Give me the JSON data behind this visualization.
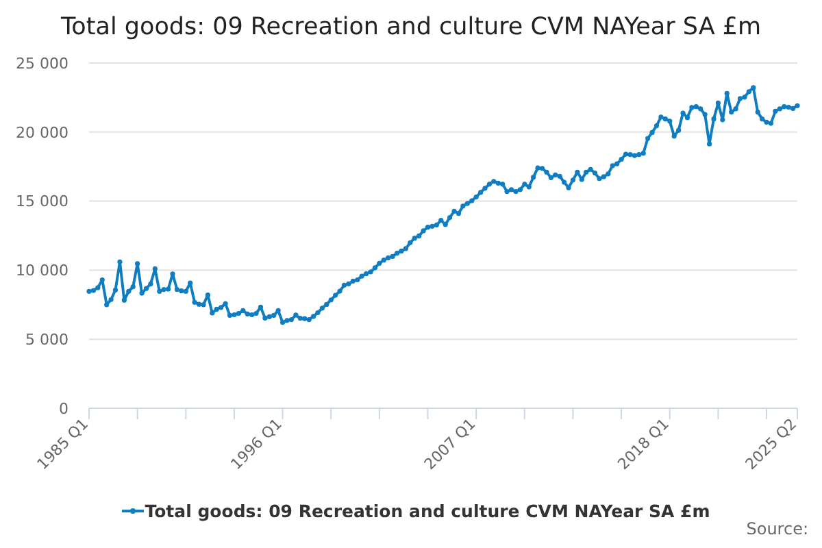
{
  "chart_data": {
    "type": "line",
    "title": "Total goods: 09 Recreation and culture CVM NAYear SA £m",
    "categories": [
      "1985 Q1",
      null,
      null,
      null,
      null,
      null,
      null,
      null,
      null,
      null,
      null,
      null,
      null,
      null,
      null,
      null,
      null,
      null,
      null,
      null,
      null,
      null,
      null,
      null,
      null,
      null,
      null,
      null,
      null,
      null,
      null,
      null,
      null,
      null,
      null,
      null,
      null,
      null,
      null,
      null,
      null,
      null,
      null,
      null,
      "1996 Q1",
      null,
      null,
      null,
      null,
      null,
      null,
      null,
      null,
      null,
      null,
      null,
      null,
      null,
      null,
      null,
      null,
      null,
      null,
      null,
      null,
      null,
      null,
      null,
      null,
      null,
      null,
      null,
      null,
      null,
      null,
      null,
      null,
      null,
      null,
      null,
      null,
      null,
      null,
      null,
      null,
      null,
      null,
      null,
      "2007 Q1",
      null,
      null,
      null,
      null,
      null,
      null,
      null,
      null,
      null,
      null,
      null,
      null,
      null,
      null,
      null,
      null,
      null,
      null,
      null,
      null,
      null,
      null,
      null,
      null,
      null,
      null,
      null,
      null,
      null,
      null,
      null,
      null,
      null,
      null,
      null,
      null,
      null,
      null,
      null,
      null,
      null,
      null,
      null,
      "2018 Q1",
      null,
      null,
      null,
      null,
      null,
      null,
      null,
      null,
      null,
      null,
      null,
      null,
      null,
      null,
      null,
      null,
      null,
      null,
      null,
      null,
      null,
      null,
      null,
      null,
      null,
      null,
      null,
      null,
      "2025 Q2"
    ],
    "series": [
      {
        "name": "Total goods: 09 Recreation and culture CVM NAYear SA £m",
        "color": "#0f7dc2",
        "values": [
          8470,
          8530,
          8730,
          9300,
          7500,
          7870,
          8570,
          10600,
          7830,
          8470,
          8800,
          10470,
          8330,
          8670,
          9000,
          10100,
          8470,
          8600,
          8630,
          9730,
          8600,
          8500,
          8470,
          9070,
          7670,
          7530,
          7500,
          8200,
          6900,
          7170,
          7300,
          7570,
          6730,
          6770,
          6870,
          7070,
          6830,
          6770,
          6870,
          7330,
          6530,
          6630,
          6730,
          7070,
          6220,
          6360,
          6420,
          6750,
          6520,
          6490,
          6420,
          6650,
          6920,
          7250,
          7520,
          7850,
          8180,
          8480,
          8910,
          9010,
          9210,
          9300,
          9570,
          9740,
          9870,
          10170,
          10500,
          10730,
          10890,
          10990,
          11230,
          11390,
          11560,
          11990,
          12320,
          12480,
          12850,
          13110,
          13180,
          13280,
          13610,
          13310,
          13810,
          14270,
          14110,
          14640,
          14830,
          15030,
          15300,
          15630,
          15930,
          16230,
          16430,
          16300,
          16230,
          15700,
          15830,
          15700,
          15830,
          16230,
          16030,
          16730,
          17400,
          17370,
          17100,
          16700,
          16900,
          16800,
          16370,
          15970,
          16530,
          17100,
          16570,
          17100,
          17300,
          17030,
          16630,
          16770,
          16970,
          17570,
          17700,
          18030,
          18400,
          18370,
          18300,
          18370,
          18470,
          19540,
          19970,
          20460,
          21090,
          20950,
          20790,
          19700,
          20130,
          21380,
          21050,
          21780,
          21840,
          21680,
          21280,
          19140,
          20950,
          22100,
          20890,
          22800,
          21450,
          21680,
          22430,
          22530,
          22930,
          23220,
          21450,
          20950,
          20720,
          20630,
          21510,
          21680,
          21840,
          21800,
          21710,
          21910
        ]
      }
    ],
    "ylim": [
      0,
      25000
    ],
    "yticks": [
      0,
      {
        "value": 5000,
        "label": "5 000"
      },
      {
        "value": 10000,
        "label": "10 000"
      },
      {
        "value": 15000,
        "label": "15 000"
      },
      {
        "value": 20000,
        "label": "20 000"
      },
      {
        "value": 25000,
        "label": "25 000"
      }
    ],
    "grid": "y",
    "legend": "bottom",
    "marker": "circle",
    "line_style": "solid",
    "annotations": [
      "Source:"
    ]
  }
}
